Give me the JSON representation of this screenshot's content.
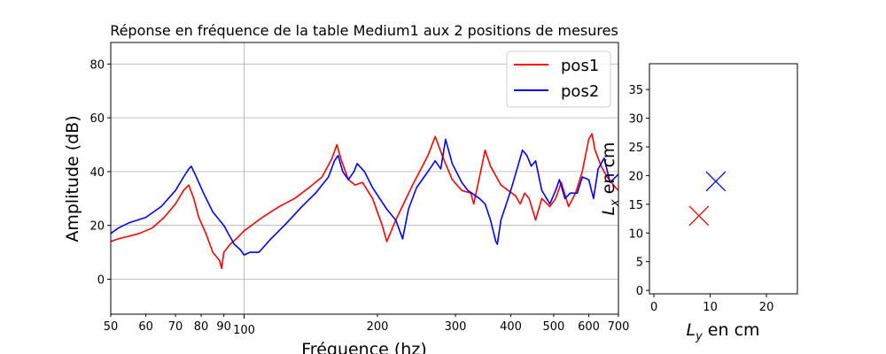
{
  "chart_data": [
    {
      "type": "line",
      "title": "Réponse en fréquence de la table Medium1 aux 2 positions de mesures",
      "xlabel": "Fréquence (hz)",
      "ylabel": "Amplitude (dB)",
      "xscale": "log",
      "xlim": [
        50,
        700
      ],
      "ylim": [
        -13,
        88
      ],
      "xticks_major": [
        100
      ],
      "xticks_minor": [
        50,
        60,
        70,
        80,
        90,
        200,
        300,
        400,
        500,
        600,
        700
      ],
      "yticks": [
        0,
        20,
        40,
        60,
        80
      ],
      "grid": true,
      "legend_position": "upper right",
      "series": [
        {
          "name": "pos1",
          "color": "#ff0000",
          "x": [
            50,
            52,
            55,
            58,
            62,
            66,
            70,
            73,
            75,
            77,
            79,
            82,
            85,
            88,
            89,
            90,
            93,
            96,
            100,
            110,
            120,
            130,
            140,
            150,
            158,
            162,
            166,
            172,
            178,
            185,
            195,
            205,
            210,
            220,
            240,
            260,
            270,
            280,
            295,
            310,
            325,
            330,
            340,
            350,
            360,
            380,
            410,
            420,
            430,
            440,
            455,
            470,
            490,
            505,
            520,
            540,
            560,
            580,
            600,
            610,
            620,
            640,
            660,
            690,
            700
          ],
          "y": [
            14,
            15,
            16,
            17,
            19,
            23,
            28,
            33,
            35,
            30,
            23,
            17,
            10,
            7,
            4,
            10,
            13,
            15,
            18,
            23,
            27,
            30,
            34,
            38,
            45,
            50,
            44,
            37,
            35,
            36,
            30,
            20,
            14,
            22,
            35,
            46,
            53,
            46,
            37,
            33,
            32,
            28,
            38,
            48,
            42,
            35,
            31,
            28,
            32,
            30,
            22,
            30,
            27,
            30,
            36,
            27,
            32,
            40,
            52,
            54,
            48,
            42,
            38,
            34,
            33
          ]
        },
        {
          "name": "pos2",
          "color": "#0000ff",
          "x": [
            50,
            52,
            55,
            60,
            65,
            70,
            73,
            75,
            76,
            78,
            81,
            85,
            90,
            95,
            98,
            100,
            103,
            108,
            115,
            125,
            135,
            145,
            155,
            160,
            163,
            167,
            172,
            177,
            180,
            187,
            195,
            210,
            220,
            228,
            235,
            245,
            260,
            270,
            278,
            285,
            295,
            310,
            320,
            340,
            350,
            360,
            370,
            373,
            380,
            400,
            415,
            425,
            435,
            445,
            455,
            470,
            490,
            505,
            515,
            530,
            545,
            565,
            580,
            600,
            615,
            630,
            650,
            670,
            700
          ],
          "y": [
            17,
            19,
            21,
            23,
            27,
            33,
            38,
            41,
            42,
            38,
            32,
            25,
            20,
            13,
            11,
            9,
            10,
            10,
            15,
            21,
            27,
            32,
            38,
            44,
            46,
            40,
            37,
            40,
            43,
            40,
            34,
            26,
            22,
            15,
            26,
            34,
            40,
            44,
            41,
            52,
            43,
            36,
            33,
            30,
            28,
            22,
            14,
            13,
            22,
            33,
            42,
            48,
            46,
            42,
            44,
            33,
            28,
            33,
            37,
            30,
            32,
            32,
            38,
            37,
            30,
            41,
            45,
            36,
            39
          ]
        }
      ]
    },
    {
      "type": "scatter",
      "title": "",
      "xlabel": "Ly en cm",
      "ylabel": "Lx en cm",
      "xlim": [
        -0.8,
        25.5
      ],
      "ylim": [
        -0.6,
        39.5
      ],
      "xticks": [
        0,
        10,
        20
      ],
      "yticks": [
        0,
        5,
        10,
        15,
        20,
        25,
        30,
        35
      ],
      "marker": "x",
      "series": [
        {
          "color": "#ff0000",
          "x": [
            8
          ],
          "y": [
            13
          ]
        },
        {
          "color": "#0000ff",
          "x": [
            11
          ],
          "y": [
            19
          ]
        }
      ]
    }
  ]
}
